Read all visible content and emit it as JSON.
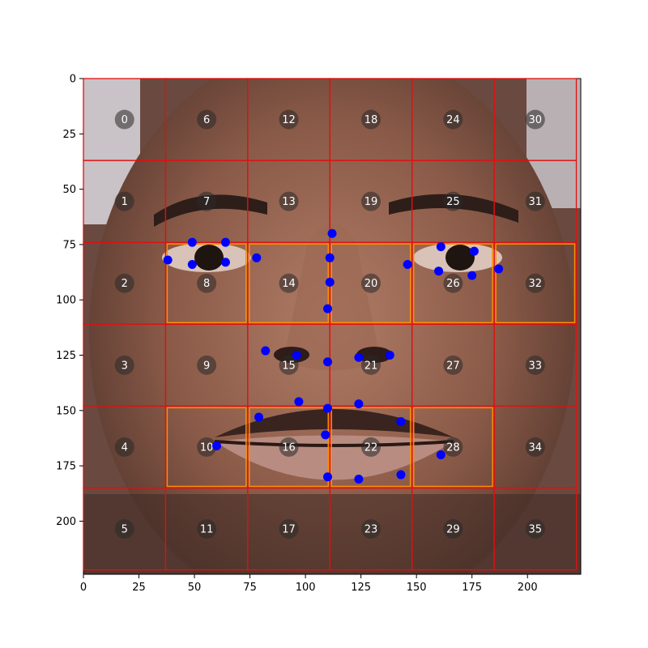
{
  "chart_data": {
    "type": "scatter",
    "title": "",
    "xlabel": "",
    "ylabel": "",
    "xlim": [
      0,
      224
    ],
    "ylim": [
      224,
      0
    ],
    "x_ticks": [
      "0",
      "25",
      "50",
      "75",
      "100",
      "125",
      "150",
      "175",
      "200"
    ],
    "y_ticks": [
      "0",
      "25",
      "50",
      "75",
      "100",
      "125",
      "150",
      "175",
      "200"
    ],
    "grid": {
      "rows": 6,
      "cols": 6,
      "cell_size": 37,
      "line_color": "#e01010"
    },
    "cell_labels": [
      "0",
      "1",
      "2",
      "3",
      "4",
      "5",
      "6",
      "7",
      "8",
      "9",
      "10",
      "11",
      "12",
      "13",
      "14",
      "15",
      "16",
      "17",
      "18",
      "19",
      "20",
      "21",
      "22",
      "23",
      "24",
      "25",
      "26",
      "27",
      "28",
      "29",
      "30",
      "31",
      "32",
      "33",
      "34",
      "35"
    ],
    "highlighted_cells": [
      8,
      14,
      20,
      26,
      32,
      10,
      16,
      22,
      28
    ],
    "highlight_color": "#ff8c00",
    "landmark_color": "#0000ff",
    "landmarks": [
      {
        "x": 38,
        "y": 82
      },
      {
        "x": 49,
        "y": 74
      },
      {
        "x": 49,
        "y": 84
      },
      {
        "x": 64,
        "y": 74
      },
      {
        "x": 64,
        "y": 83
      },
      {
        "x": 78,
        "y": 81
      },
      {
        "x": 112,
        "y": 70
      },
      {
        "x": 111,
        "y": 81
      },
      {
        "x": 111,
        "y": 92
      },
      {
        "x": 110,
        "y": 104
      },
      {
        "x": 146,
        "y": 84
      },
      {
        "x": 161,
        "y": 76
      },
      {
        "x": 160,
        "y": 87
      },
      {
        "x": 176,
        "y": 78
      },
      {
        "x": 175,
        "y": 89
      },
      {
        "x": 187,
        "y": 86
      },
      {
        "x": 82,
        "y": 123
      },
      {
        "x": 96,
        "y": 125
      },
      {
        "x": 110,
        "y": 128
      },
      {
        "x": 124,
        "y": 126
      },
      {
        "x": 138,
        "y": 125
      },
      {
        "x": 97,
        "y": 146
      },
      {
        "x": 79,
        "y": 153
      },
      {
        "x": 110,
        "y": 149
      },
      {
        "x": 124,
        "y": 147
      },
      {
        "x": 143,
        "y": 155
      },
      {
        "x": 60,
        "y": 166
      },
      {
        "x": 109,
        "y": 161
      },
      {
        "x": 161,
        "y": 170
      },
      {
        "x": 110,
        "y": 180
      },
      {
        "x": 124,
        "y": 181
      },
      {
        "x": 143,
        "y": 179
      }
    ]
  }
}
